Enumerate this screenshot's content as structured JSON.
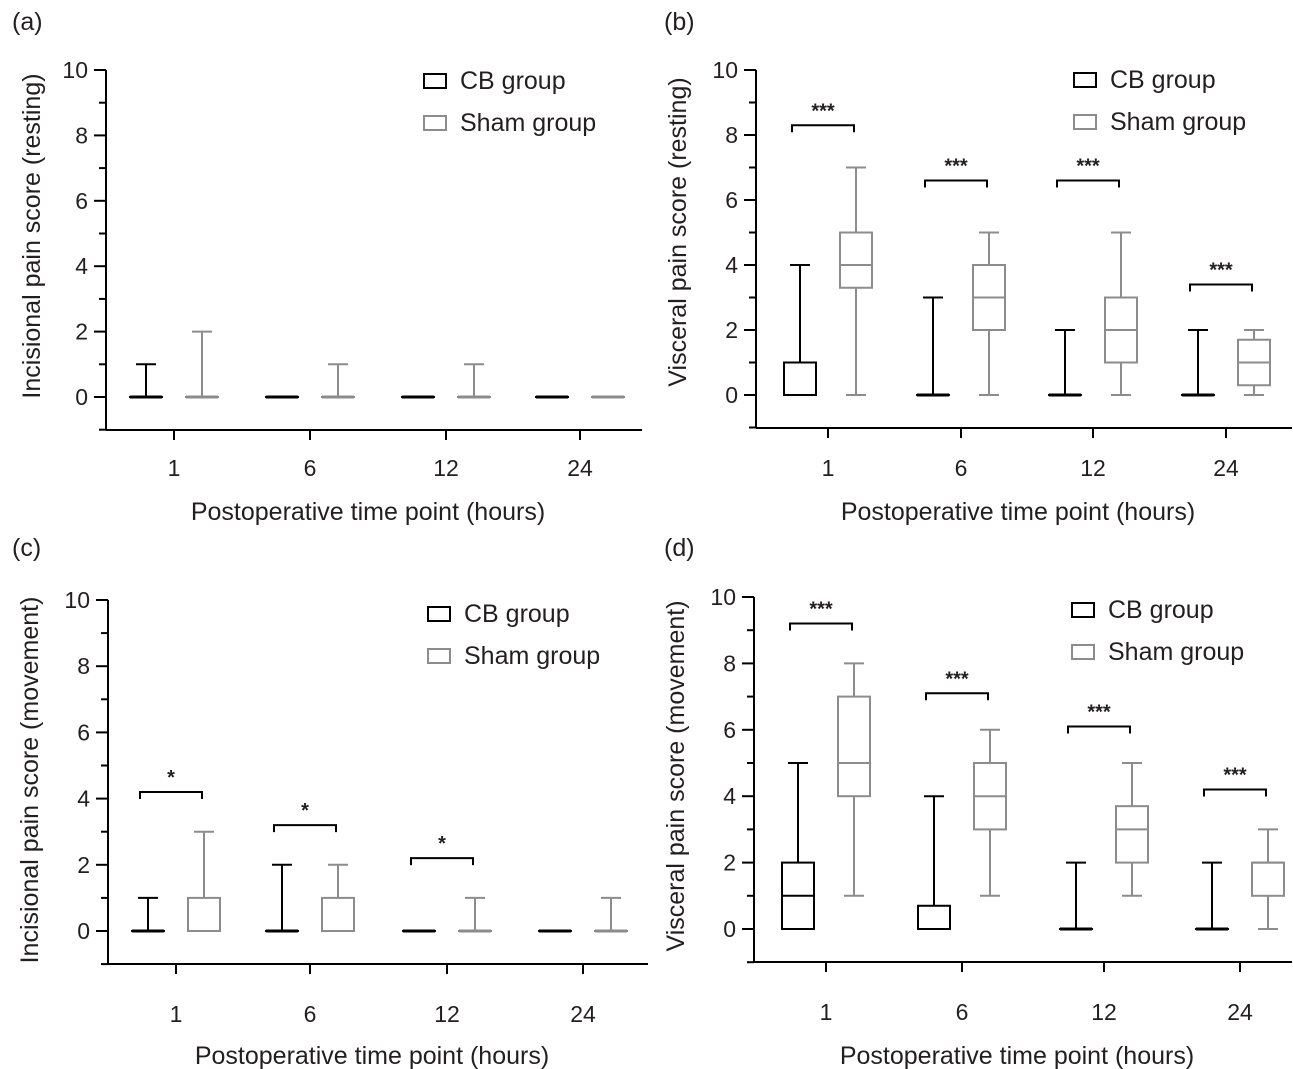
{
  "colors": {
    "cb": "#000000",
    "sham": "#8c8c8c",
    "text": "#231f20"
  },
  "chart_data": [
    {
      "panel": "(a)",
      "type": "boxplot",
      "ylabel": "Incisional pain score (resting)",
      "xlabel": "Postoperative time point (hours)",
      "ylim": [
        -1,
        10
      ],
      "yticks": [
        0,
        2,
        4,
        6,
        8,
        10
      ],
      "categories": [
        "1",
        "6",
        "12",
        "24"
      ],
      "legend": {
        "position": "top-right",
        "items": [
          "CB group",
          "Sham group"
        ]
      },
      "series": [
        {
          "name": "CB group",
          "boxes": [
            {
              "min": 0,
              "q1": 0,
              "median": 0,
              "q3": 0,
              "max": 1
            },
            {
              "min": 0,
              "q1": 0,
              "median": 0,
              "q3": 0,
              "max": 0
            },
            {
              "min": 0,
              "q1": 0,
              "median": 0,
              "q3": 0,
              "max": 0
            },
            {
              "min": 0,
              "q1": 0,
              "median": 0,
              "q3": 0,
              "max": 0
            }
          ]
        },
        {
          "name": "Sham group",
          "boxes": [
            {
              "min": 0,
              "q1": 0,
              "median": 0,
              "q3": 0,
              "max": 2
            },
            {
              "min": 0,
              "q1": 0,
              "median": 0,
              "q3": 0,
              "max": 1
            },
            {
              "min": 0,
              "q1": 0,
              "median": 0,
              "q3": 0,
              "max": 1
            },
            {
              "min": 0,
              "q1": 0,
              "median": 0,
              "q3": 0,
              "max": 0
            }
          ]
        }
      ],
      "significance": []
    },
    {
      "panel": "(b)",
      "type": "boxplot",
      "ylabel": "Visceral pain score (resting)",
      "xlabel": "Postoperative time point (hours)",
      "ylim": [
        -1,
        10
      ],
      "yticks": [
        0,
        2,
        4,
        6,
        8,
        10
      ],
      "categories": [
        "1",
        "6",
        "12",
        "24"
      ],
      "legend": {
        "position": "top-right",
        "items": [
          "CB group",
          "Sham group"
        ]
      },
      "series": [
        {
          "name": "CB group",
          "boxes": [
            {
              "min": 0,
              "q1": 0,
              "median": 1,
              "q3": 1,
              "max": 4
            },
            {
              "min": 0,
              "q1": 0,
              "median": 0,
              "q3": 0,
              "max": 3
            },
            {
              "min": 0,
              "q1": 0,
              "median": 0,
              "q3": 0,
              "max": 2
            },
            {
              "min": 0,
              "q1": 0,
              "median": 0,
              "q3": 0,
              "max": 2
            }
          ]
        },
        {
          "name": "Sham group",
          "boxes": [
            {
              "min": 0,
              "q1": 3.3,
              "median": 4,
              "q3": 5,
              "max": 7
            },
            {
              "min": 0,
              "q1": 2,
              "median": 3,
              "q3": 4,
              "max": 5
            },
            {
              "min": 0,
              "q1": 1,
              "median": 2,
              "q3": 3,
              "max": 5
            },
            {
              "min": 0,
              "q1": 0.3,
              "median": 1,
              "q3": 1.7,
              "max": 2
            }
          ]
        }
      ],
      "significance": [
        {
          "category": "1",
          "label": "***",
          "y": 8.3
        },
        {
          "category": "6",
          "label": "***",
          "y": 6.6
        },
        {
          "category": "12",
          "label": "***",
          "y": 6.6
        },
        {
          "category": "24",
          "label": "***",
          "y": 3.4
        }
      ]
    },
    {
      "panel": "(c)",
      "type": "boxplot",
      "ylabel": "Incisional pain score (movement)",
      "xlabel": "Postoperative time point (hours)",
      "ylim": [
        -1,
        10
      ],
      "yticks": [
        0,
        2,
        4,
        6,
        8,
        10
      ],
      "categories": [
        "1",
        "6",
        "12",
        "24"
      ],
      "legend": {
        "position": "top-right",
        "items": [
          "CB group",
          "Sham group"
        ]
      },
      "series": [
        {
          "name": "CB group",
          "boxes": [
            {
              "min": 0,
              "q1": 0,
              "median": 0,
              "q3": 0,
              "max": 1
            },
            {
              "min": 0,
              "q1": 0,
              "median": 0,
              "q3": 0,
              "max": 2
            },
            {
              "min": 0,
              "q1": 0,
              "median": 0,
              "q3": 0,
              "max": 0
            },
            {
              "min": 0,
              "q1": 0,
              "median": 0,
              "q3": 0,
              "max": 0
            }
          ]
        },
        {
          "name": "Sham group",
          "boxes": [
            {
              "min": 0,
              "q1": 0,
              "median": 0,
              "q3": 1,
              "max": 3
            },
            {
              "min": 0,
              "q1": 0,
              "median": 0,
              "q3": 1,
              "max": 2
            },
            {
              "min": 0,
              "q1": 0,
              "median": 0,
              "q3": 0,
              "max": 1
            },
            {
              "min": 0,
              "q1": 0,
              "median": 0,
              "q3": 0,
              "max": 1
            }
          ]
        }
      ],
      "significance": [
        {
          "category": "1",
          "label": "*",
          "y": 4.2
        },
        {
          "category": "6",
          "label": "*",
          "y": 3.2
        },
        {
          "category": "12",
          "label": "*",
          "y": 2.2
        }
      ]
    },
    {
      "panel": "(d)",
      "type": "boxplot",
      "ylabel": "Visceral pain score (movement)",
      "xlabel": "Postoperative time point (hours)",
      "ylim": [
        -1,
        10
      ],
      "yticks": [
        0,
        2,
        4,
        6,
        8,
        10
      ],
      "categories": [
        "1",
        "6",
        "12",
        "24"
      ],
      "legend": {
        "position": "top-right",
        "items": [
          "CB group",
          "Sham group"
        ]
      },
      "series": [
        {
          "name": "CB group",
          "boxes": [
            {
              "min": 0,
              "q1": 0,
              "median": 1,
              "q3": 2,
              "max": 5
            },
            {
              "min": 0,
              "q1": 0,
              "median": 0,
              "q3": 0.7,
              "max": 4
            },
            {
              "min": 0,
              "q1": 0,
              "median": 0,
              "q3": 0,
              "max": 2
            },
            {
              "min": 0,
              "q1": 0,
              "median": 0,
              "q3": 0,
              "max": 2
            }
          ]
        },
        {
          "name": "Sham group",
          "boxes": [
            {
              "min": 1,
              "q1": 4,
              "median": 5,
              "q3": 7,
              "max": 8
            },
            {
              "min": 1,
              "q1": 3,
              "median": 4,
              "q3": 5,
              "max": 6
            },
            {
              "min": 1,
              "q1": 2,
              "median": 3,
              "q3": 3.7,
              "max": 5
            },
            {
              "min": 0,
              "q1": 1,
              "median": 2,
              "q3": 2,
              "max": 3
            }
          ]
        }
      ],
      "significance": [
        {
          "category": "1",
          "label": "***",
          "y": 9.2
        },
        {
          "category": "6",
          "label": "***",
          "y": 7.1
        },
        {
          "category": "12",
          "label": "***",
          "y": 6.1
        },
        {
          "category": "24",
          "label": "***",
          "y": 4.2
        }
      ]
    }
  ]
}
